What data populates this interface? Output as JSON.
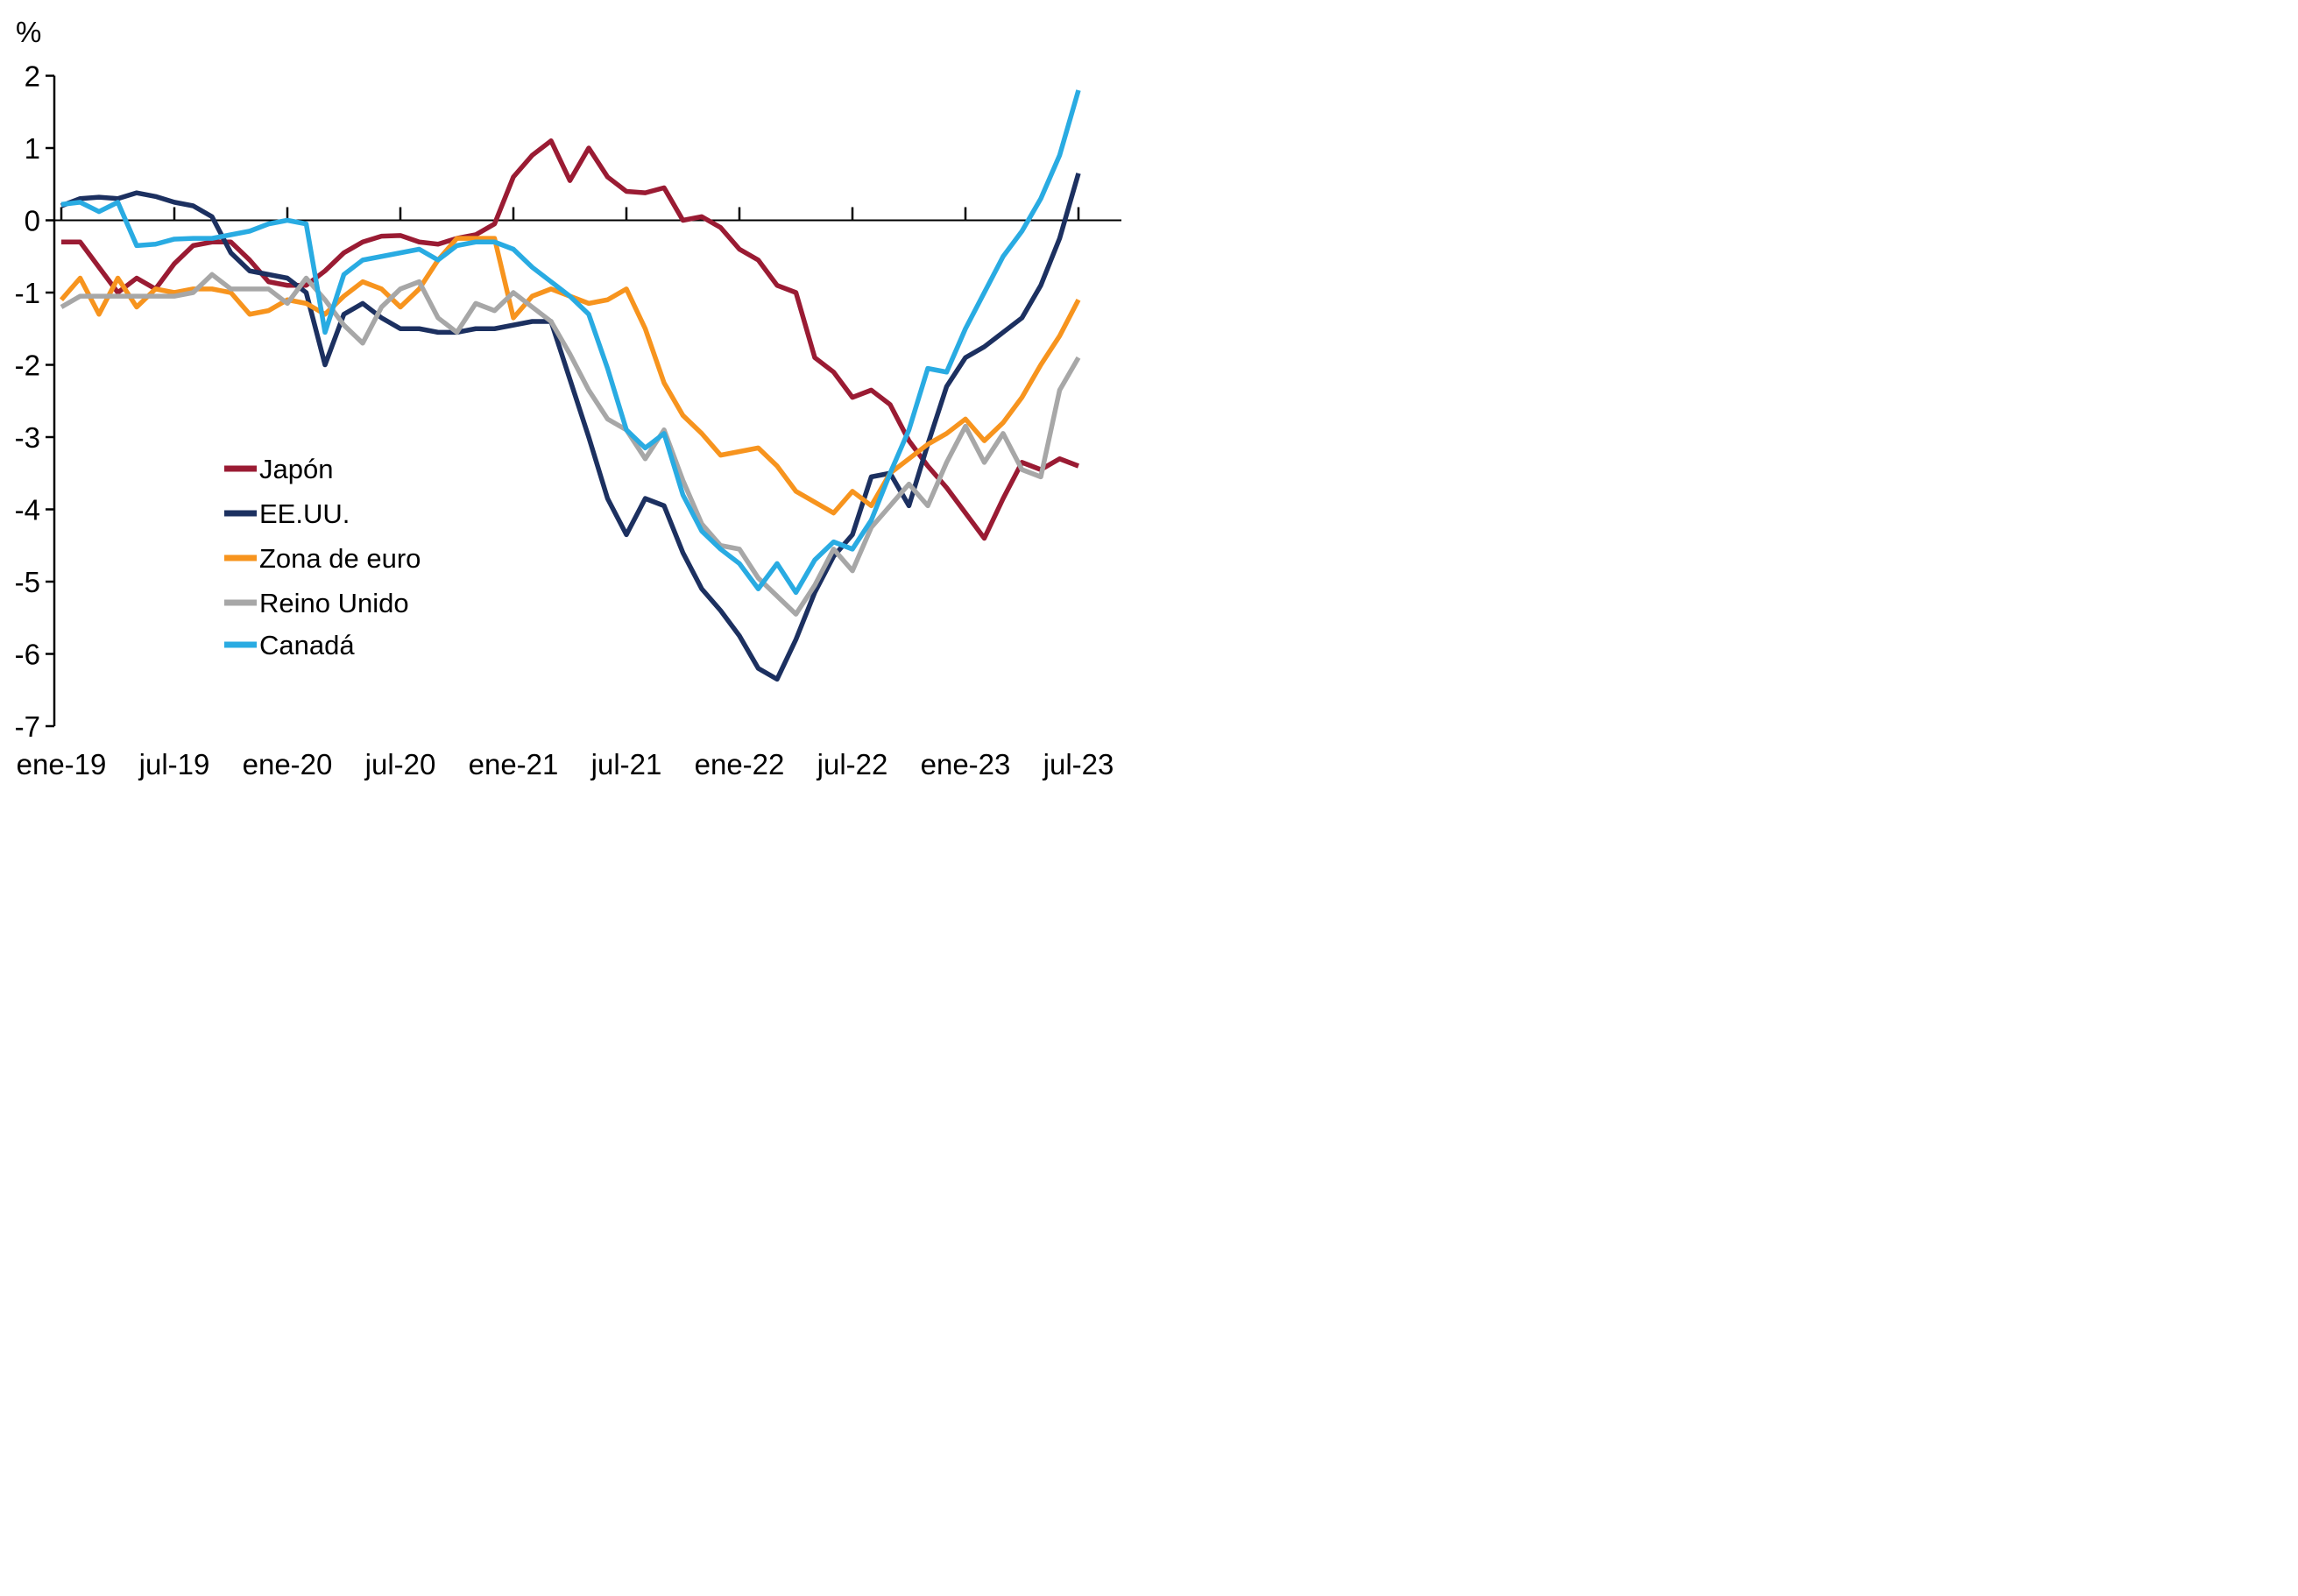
{
  "unit_label": "%",
  "chart_data": {
    "type": "line",
    "title": "",
    "xlabel": "",
    "ylabel": "%",
    "ylim": [
      -7,
      2
    ],
    "y_ticks": [
      2,
      1,
      0,
      -1,
      -2,
      -3,
      -4,
      -5,
      -6,
      -7
    ],
    "grid": false,
    "zero_line": true,
    "legend_position": "middle-left",
    "x": [
      "ene-19",
      "feb-19",
      "mar-19",
      "abr-19",
      "may-19",
      "jun-19",
      "jul-19",
      "ago-19",
      "sep-19",
      "oct-19",
      "nov-19",
      "dic-19",
      "ene-20",
      "feb-20",
      "mar-20",
      "abr-20",
      "may-20",
      "jun-20",
      "jul-20",
      "ago-20",
      "sep-20",
      "oct-20",
      "nov-20",
      "dic-20",
      "ene-21",
      "feb-21",
      "mar-21",
      "abr-21",
      "may-21",
      "jun-21",
      "jul-21",
      "ago-21",
      "sep-21",
      "oct-21",
      "nov-21",
      "dic-21",
      "ene-22",
      "feb-22",
      "mar-22",
      "abr-22",
      "may-22",
      "jun-22",
      "jul-22",
      "ago-22",
      "sep-22",
      "oct-22",
      "nov-22",
      "dic-22",
      "ene-23",
      "feb-23",
      "mar-23",
      "abr-23",
      "may-23",
      "jun-23",
      "jul-23"
    ],
    "x_tick_indices": [
      0,
      6,
      12,
      18,
      24,
      30,
      36,
      42,
      48,
      54
    ],
    "x_tick_labels": [
      "ene-19",
      "jul-19",
      "ene-20",
      "jul-20",
      "ene-21",
      "jul-21",
      "ene-22",
      "jul-22",
      "ene-23",
      "jul-23"
    ],
    "series": [
      {
        "name": "Japón",
        "color": "#9A1B33",
        "values": [
          -0.3,
          -0.3,
          -0.65,
          -1.0,
          -0.8,
          -0.95,
          -0.6,
          -0.35,
          -0.3,
          -0.3,
          -0.55,
          -0.85,
          -0.9,
          -0.9,
          -0.7,
          -0.45,
          -0.3,
          -0.22,
          -0.21,
          -0.3,
          -0.33,
          -0.25,
          -0.2,
          -0.05,
          0.6,
          0.9,
          1.1,
          0.55,
          1.0,
          0.6,
          0.4,
          0.38,
          0.45,
          0.0,
          0.05,
          -0.1,
          -0.4,
          -0.55,
          -0.9,
          -1.0,
          -1.9,
          -2.1,
          -2.45,
          -2.35,
          -2.55,
          -3.05,
          -3.4,
          -3.7,
          -4.05,
          -4.4,
          -3.85,
          -3.35,
          -3.45,
          -3.3,
          -3.4
        ]
      },
      {
        "name": "EE.UU.",
        "color": "#1C3060",
        "values": [
          0.2,
          0.3,
          0.32,
          0.3,
          0.38,
          0.33,
          0.25,
          0.2,
          0.05,
          -0.45,
          -0.7,
          -0.75,
          -0.8,
          -1.0,
          -2.0,
          -1.3,
          -1.15,
          -1.35,
          -1.5,
          -1.5,
          -1.55,
          -1.55,
          -1.5,
          -1.5,
          -1.45,
          -1.4,
          -1.4,
          -2.2,
          -3.0,
          -3.85,
          -4.35,
          -3.85,
          -3.95,
          -4.6,
          -5.1,
          -5.4,
          -5.75,
          -6.2,
          -6.35,
          -5.8,
          -5.15,
          -4.65,
          -4.35,
          -3.55,
          -3.5,
          -3.95,
          -3.1,
          -2.3,
          -1.9,
          -1.75,
          -1.55,
          -1.35,
          -0.9,
          -0.25,
          0.65
        ]
      },
      {
        "name": "Zona de euro",
        "color": "#F7941E",
        "values": [
          -1.1,
          -0.8,
          -1.3,
          -0.8,
          -1.2,
          -0.95,
          -1.0,
          -0.95,
          -0.95,
          -1.0,
          -1.3,
          -1.25,
          -1.1,
          -1.15,
          -1.3,
          -1.05,
          -0.85,
          -0.95,
          -1.2,
          -0.95,
          -0.55,
          -0.25,
          -0.25,
          -0.25,
          -1.35,
          -1.05,
          -0.95,
          -1.05,
          -1.15,
          -1.1,
          -0.95,
          -1.5,
          -2.25,
          -2.7,
          -2.95,
          -3.25,
          -3.2,
          -3.15,
          -3.4,
          -3.75,
          -3.9,
          -4.05,
          -3.75,
          -3.95,
          -3.5,
          -3.3,
          -3.1,
          -2.95,
          -2.75,
          -3.05,
          -2.8,
          -2.45,
          -2.0,
          -1.6,
          -1.1
        ]
      },
      {
        "name": "Reino Unido",
        "color": "#A7A7A7",
        "values": [
          -1.2,
          -1.05,
          -1.05,
          -1.05,
          -1.05,
          -1.05,
          -1.05,
          -1.0,
          -0.75,
          -0.95,
          -0.95,
          -0.95,
          -1.15,
          -0.8,
          -1.1,
          -1.45,
          -1.7,
          -1.2,
          -0.95,
          -0.85,
          -1.35,
          -1.55,
          -1.15,
          -1.25,
          -1.0,
          -1.2,
          -1.4,
          -1.85,
          -2.35,
          -2.75,
          -2.9,
          -3.3,
          -2.9,
          -3.6,
          -4.2,
          -4.5,
          -4.55,
          -4.95,
          -5.2,
          -5.45,
          -5.05,
          -4.55,
          -4.85,
          -4.25,
          -3.95,
          -3.65,
          -3.95,
          -3.35,
          -2.85,
          -3.35,
          -2.95,
          -3.45,
          -3.55,
          -2.35,
          -1.9
        ]
      },
      {
        "name": "Canadá",
        "color": "#29ABE2",
        "values": [
          0.22,
          0.25,
          0.12,
          0.25,
          -0.35,
          -0.33,
          -0.26,
          -0.25,
          -0.25,
          -0.2,
          -0.15,
          -0.05,
          0.0,
          -0.05,
          -1.55,
          -0.75,
          -0.55,
          -0.5,
          -0.45,
          -0.4,
          -0.55,
          -0.35,
          -0.3,
          -0.3,
          -0.4,
          -0.65,
          -0.85,
          -1.05,
          -1.3,
          -2.05,
          -2.9,
          -3.15,
          -2.95,
          -3.8,
          -4.3,
          -4.55,
          -4.75,
          -5.1,
          -4.75,
          -5.15,
          -4.7,
          -4.45,
          -4.55,
          -4.15,
          -3.5,
          -2.9,
          -2.05,
          -2.1,
          -1.5,
          -1.0,
          -0.5,
          -0.15,
          0.3,
          0.9,
          1.8
        ]
      }
    ]
  }
}
